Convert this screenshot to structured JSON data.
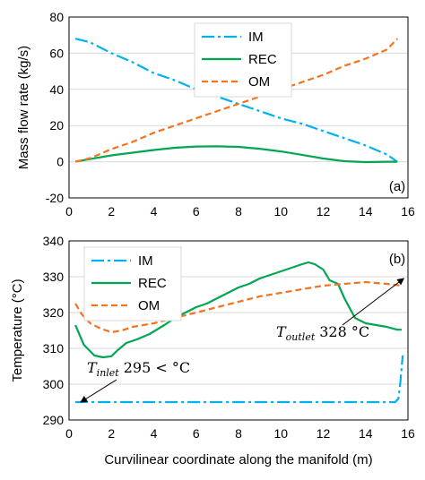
{
  "chart_data": [
    {
      "panel": "(a)",
      "type": "line",
      "ylabel": "Mass flow rate (kg/s)",
      "xlim": [
        0,
        16
      ],
      "ylim": [
        -20,
        80
      ],
      "xticks": [
        "0",
        "2",
        "4",
        "6",
        "8",
        "10",
        "12",
        "14",
        "16"
      ],
      "yticks": [
        "-20",
        "0",
        "20",
        "40",
        "60",
        "80"
      ],
      "legend_position": "top-center",
      "series": [
        {
          "name": "IM",
          "color": "#00B0F0",
          "dash": "dash-dot",
          "x": [
            0.3,
            1,
            2,
            3,
            4,
            5,
            6,
            7,
            8,
            9,
            10,
            11,
            12,
            13,
            14,
            15,
            15.5
          ],
          "y": [
            68,
            66,
            60,
            55,
            49,
            45,
            40,
            36,
            32,
            28,
            24,
            21,
            17,
            13,
            9,
            4,
            0
          ]
        },
        {
          "name": "REC",
          "color": "#00A651",
          "dash": "solid",
          "x": [
            0.3,
            1,
            2,
            3,
            4,
            5,
            6,
            7,
            8,
            9,
            10,
            11,
            12,
            13,
            14,
            15,
            15.5
          ],
          "y": [
            0,
            1.5,
            3.5,
            5,
            6.5,
            7.7,
            8.4,
            8.5,
            8.2,
            7.2,
            5.7,
            3.8,
            1.8,
            0.3,
            -0.2,
            0,
            0
          ]
        },
        {
          "name": "OM",
          "color": "#F4731F",
          "dash": "dashed",
          "x": [
            0.3,
            1,
            2,
            3,
            4,
            5,
            6,
            7,
            8,
            9,
            10,
            11,
            12,
            13,
            14,
            15,
            15.5
          ],
          "y": [
            0,
            2,
            7,
            11,
            16,
            20,
            24,
            28,
            32,
            36,
            40,
            44,
            48,
            53,
            57,
            62,
            68
          ]
        }
      ]
    },
    {
      "panel": "(b)",
      "type": "line",
      "xlabel": "Curvilinear coordinate along the manifold (m)",
      "ylabel": "Temperature (°C)",
      "xlim": [
        0,
        16
      ],
      "ylim": [
        290,
        340
      ],
      "xticks": [
        "0",
        "2",
        "4",
        "6",
        "8",
        "10",
        "12",
        "14",
        "16"
      ],
      "yticks": [
        "290",
        "300",
        "310",
        "320",
        "330",
        "340"
      ],
      "legend_position": "top-left",
      "series": [
        {
          "name": "IM",
          "color": "#00B0F0",
          "dash": "dash-dot",
          "x": [
            0.3,
            2,
            4,
            6,
            8,
            10,
            12,
            14,
            15.4,
            15.55,
            15.65,
            15.75
          ],
          "y": [
            295,
            295,
            295,
            295,
            295,
            295,
            295,
            295,
            295,
            296,
            301,
            308
          ]
        },
        {
          "name": "REC",
          "color": "#00A651",
          "dash": "solid",
          "x": [
            0.3,
            0.7,
            1.2,
            1.6,
            2.0,
            2.3,
            2.7,
            3.2,
            3.8,
            4.5,
            5.0,
            5.5,
            6.0,
            6.5,
            7.0,
            7.5,
            8.0,
            8.5,
            9.0,
            9.5,
            10.0,
            10.5,
            11.0,
            11.3,
            11.6,
            12.0,
            12.3,
            12.7,
            13.0,
            13.5,
            14.0,
            14.5,
            15.0,
            15.5,
            15.7
          ],
          "y": [
            316.5,
            311,
            308,
            307.5,
            307.8,
            309.5,
            311.5,
            312.5,
            314,
            316.5,
            318.5,
            320,
            321.5,
            322.5,
            324,
            325.5,
            327,
            328,
            329.5,
            330.5,
            331.5,
            332.5,
            333.5,
            334,
            333.5,
            332,
            329,
            328,
            324,
            318.5,
            317,
            316.5,
            316,
            315.2,
            315.2
          ]
        },
        {
          "name": "OM",
          "color": "#F4731F",
          "dash": "dashed",
          "x": [
            0.3,
            0.6,
            1.0,
            1.5,
            2.0,
            2.5,
            3.0,
            4.0,
            5.0,
            6.0,
            7.0,
            8.0,
            9.0,
            10.0,
            11.0,
            12.0,
            13.0,
            14.0,
            15.0,
            15.7
          ],
          "y": [
            322.5,
            319.5,
            317,
            315.5,
            314.5,
            315,
            316,
            317,
            318.5,
            320,
            321.5,
            323,
            324.5,
            325.5,
            326.5,
            327.5,
            328,
            328.5,
            328,
            327.5
          ]
        }
      ],
      "annotations": [
        {
          "id": "outlet",
          "label": "T",
          "subscript": "outlet",
          "value": "328 °C",
          "arrow_to": [
            15.8,
            327.5
          ]
        },
        {
          "id": "inlet",
          "label": "T",
          "subscript": "inlet",
          "value": "295 < °C",
          "arrow_to": [
            0.3,
            295
          ]
        }
      ]
    }
  ]
}
